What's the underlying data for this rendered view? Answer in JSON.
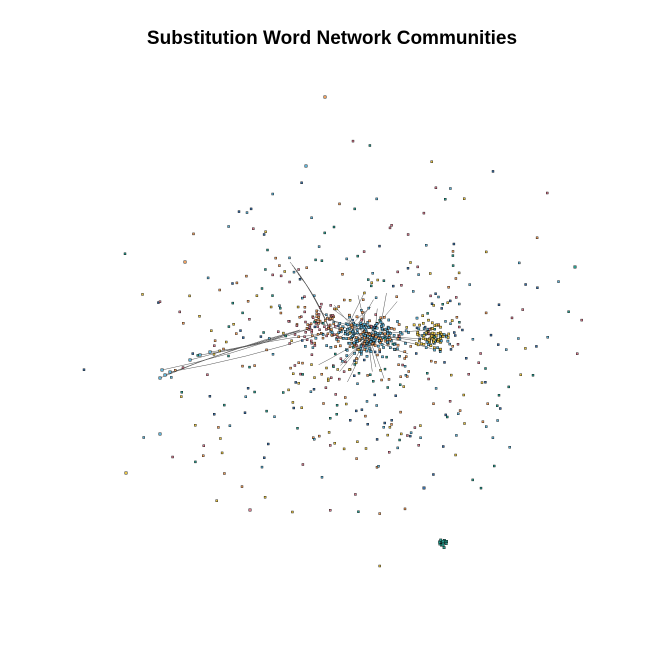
{
  "figure": {
    "title": "Substitution Word Network Communities"
  },
  "colors": {
    "background": "#ffffff",
    "edge": "#555555",
    "node_outline": "#000000",
    "community_palette": [
      "#F0A060",
      "#5FB2D6",
      "#2A9D8F",
      "#E8C547",
      "#D87A8E",
      "#3A6EA5"
    ]
  }
}
